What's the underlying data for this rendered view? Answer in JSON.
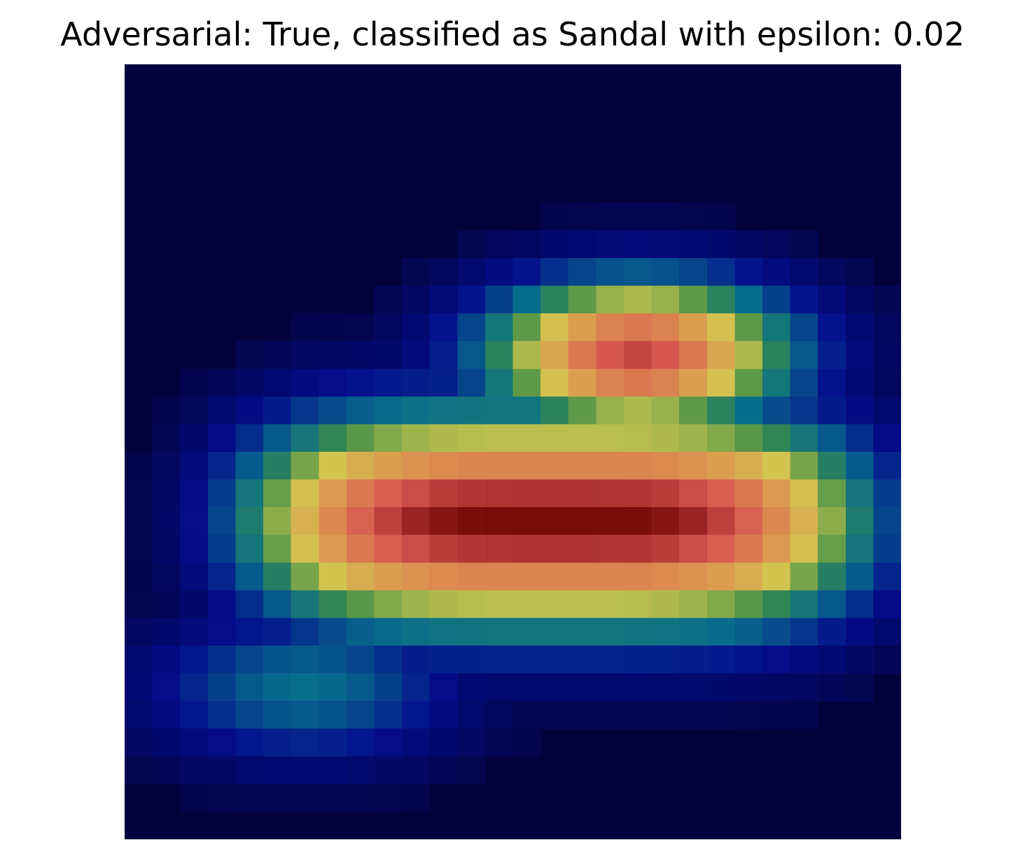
{
  "title": "Adversarial: True, classified as Sandal with epsilon: 0.02",
  "image": {
    "description_type": "heatmap overlay",
    "grid_rows": 28,
    "grid_cols": 28,
    "colors": {
      "background": "#04043f",
      "deep_navy": "#010139",
      "blue": "#0a1a8f",
      "teal": "#11868a",
      "green": "#4e8a35",
      "yellow": "#e6df5c",
      "orange": "#d99352",
      "red": "#d85555",
      "dark_red": "#6a0000",
      "cyan": "#5ad6d6"
    }
  }
}
